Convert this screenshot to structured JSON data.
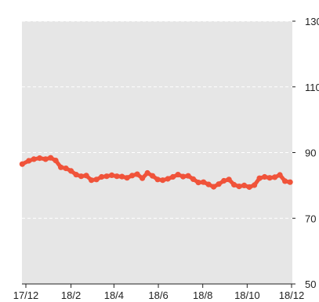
{
  "colors": {
    "plot_background": "#e6e6e6",
    "series_line": "#f0533a",
    "grid": "#ffffff",
    "axis": "#222222"
  },
  "chart_data": {
    "type": "line",
    "title": "",
    "xlabel": "",
    "ylabel": "",
    "ylim": [
      50,
      130
    ],
    "y_axis_side": "right",
    "grid": "horizontal-dashed",
    "legend": "none",
    "y_ticks": [
      {
        "value": 130,
        "label": "130"
      },
      {
        "value": 110,
        "label": "110"
      },
      {
        "value": 90,
        "label": "90"
      },
      {
        "value": 70,
        "label": "70"
      },
      {
        "value": 50,
        "label": "50"
      }
    ],
    "x_ticks": [
      {
        "date": "2017-12-01",
        "label": "17/12"
      },
      {
        "date": "2018-02-01",
        "label": "18/2"
      },
      {
        "date": "2018-04-01",
        "label": "18/4"
      },
      {
        "date": "2018-06-01",
        "label": "18/6"
      },
      {
        "date": "2018-08-01",
        "label": "18/8"
      },
      {
        "date": "2018-10-01",
        "label": "18/10"
      },
      {
        "date": "2018-12-01",
        "label": "18/12"
      }
    ],
    "series": [
      {
        "x": [
          "2017-11-26",
          "2017-12-05",
          "2017-12-12",
          "2017-12-20",
          "2017-12-28",
          "2018-01-04",
          "2018-01-11",
          "2018-01-18",
          "2018-01-25",
          "2018-02-01",
          "2018-02-08",
          "2018-02-15",
          "2018-02-22",
          "2018-03-01",
          "2018-03-08",
          "2018-03-15",
          "2018-03-22",
          "2018-03-29",
          "2018-04-05",
          "2018-04-12",
          "2018-04-19",
          "2018-04-26",
          "2018-05-03",
          "2018-05-10",
          "2018-05-17",
          "2018-05-24",
          "2018-05-31",
          "2018-06-07",
          "2018-06-14",
          "2018-06-21",
          "2018-06-28",
          "2018-07-05",
          "2018-07-12",
          "2018-07-19",
          "2018-07-26",
          "2018-08-02",
          "2018-08-09",
          "2018-08-16",
          "2018-08-23",
          "2018-08-30",
          "2018-09-06",
          "2018-09-13",
          "2018-09-20",
          "2018-09-27",
          "2018-10-04",
          "2018-10-11",
          "2018-10-18",
          "2018-10-25",
          "2018-11-01",
          "2018-11-08",
          "2018-11-15",
          "2018-11-22",
          "2018-11-29"
        ],
        "values": [
          86.5,
          87.5,
          88.0,
          88.3,
          88.0,
          88.4,
          87.6,
          85.5,
          85.2,
          84.4,
          83.3,
          82.8,
          83.0,
          81.6,
          81.8,
          82.6,
          82.8,
          83.1,
          82.8,
          82.7,
          82.3,
          83.0,
          83.4,
          82.2,
          83.8,
          82.9,
          81.8,
          81.6,
          82.0,
          82.6,
          83.3,
          82.7,
          82.9,
          81.9,
          80.9,
          81.0,
          80.3,
          79.6,
          80.4,
          81.4,
          81.8,
          80.2,
          79.7,
          80.0,
          79.5,
          80.1,
          82.2,
          82.6,
          82.3,
          82.5,
          83.2,
          81.3,
          81.0
        ]
      }
    ]
  }
}
